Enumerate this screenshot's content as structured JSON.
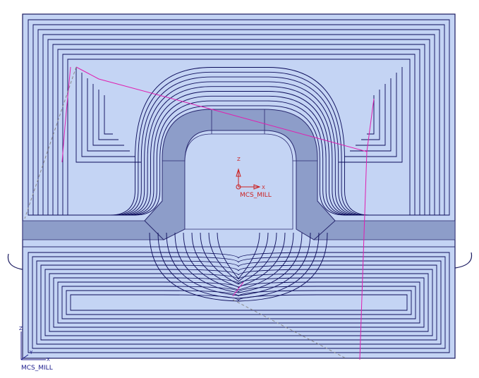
{
  "viewport": {
    "background": "#ffffff",
    "part_fill": "#c4d4f4",
    "part_shade": "#8d9dc9",
    "part_edge": "#1a1a60",
    "toolpath_color": "#0b0b5a",
    "engage_color": "#e01fb0",
    "rapid_color": "#8a8a8a"
  },
  "csys_labels": {
    "mcs": "MCS_MILL",
    "x_axis": "X",
    "z_axis": "Z",
    "y_axis": "Y"
  },
  "axis_colors": {
    "csys": "#1a1a8c",
    "mcs": "#cc2222"
  }
}
